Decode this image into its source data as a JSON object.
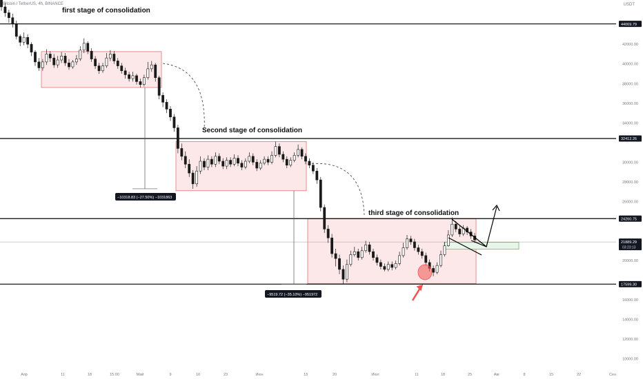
{
  "header": {
    "symbol": "Bitcoin / TetherUS, 4h, BINANCE",
    "currency": "USDT"
  },
  "colors": {
    "candle": "#1a1a1a",
    "zone_fill": "#fce8e8",
    "zone_stroke": "#e57373",
    "level_line": "#000000",
    "current_price_line": "#9e9e9e",
    "green_zone": "#e8f5e9",
    "green_stroke": "#66bb6a",
    "red_marker": "#ef5350",
    "axis_text": "#787b86",
    "label_bg": "#131722"
  },
  "chart_data": {
    "type": "candlestick",
    "title": "",
    "y_axis_ticks": [
      42000,
      40000,
      38000,
      36000,
      34000,
      30000,
      28000,
      26000,
      20000,
      16000,
      14000,
      12000,
      10000
    ],
    "y_axis_tick_labels": [
      "42000.00",
      "40000.00",
      "38000.00",
      "36000.00",
      "34000.00",
      "30000.00",
      "28000.00",
      "26000.00",
      "20000.00",
      "16000.00",
      "14000.00",
      "12000.00",
      "10000.00"
    ],
    "ylim": [
      9000,
      46500
    ],
    "x_axis_labels": [
      "Апр",
      "11",
      "18",
      "15:00",
      "Май",
      "9",
      "16",
      "23",
      "Июн",
      "13",
      "20",
      "Июл",
      "11",
      "18",
      "25",
      "Авг",
      "8",
      "15",
      "22",
      "Сен"
    ],
    "horizontal_levels": [
      {
        "price": 44069.79,
        "label": "44069.79"
      },
      {
        "price": 32412.26,
        "label": "32412.26"
      },
      {
        "price": 24260.75,
        "label": "24260.75"
      },
      {
        "price": 17599.3,
        "label": "17599.30"
      }
    ],
    "current_price": {
      "price": 21889.29,
      "label": "21889.29",
      "countdown": "03:23:13"
    },
    "consolidation_zones": [
      {
        "label": "first stage of consolidation",
        "price_high": 41250,
        "price_low": 37600
      },
      {
        "label": "Second stage of consolidation",
        "price_high": 32100,
        "price_low": 27100
      },
      {
        "label": "third stage of consolidation",
        "price_high": 24250,
        "price_low": 17650
      }
    ],
    "measurements": [
      {
        "text": "−10318.83 (−27.50%) −1031863",
        "from_price": 37600,
        "to_price": 27300
      },
      {
        "text": "−9519.72 (−35.10%) −951972",
        "from_price": 27100,
        "to_price": 17600
      }
    ],
    "green_target_zone": {
      "price_high": 21850,
      "price_low": 21150
    },
    "series": [
      {
        "type": "candlestick",
        "values": [
          [
            46500,
            45800,
            46800,
            45400
          ],
          [
            45800,
            45200,
            46200,
            44800
          ],
          [
            45200,
            44700,
            45500,
            44200
          ],
          [
            44700,
            44100,
            45100,
            43700
          ],
          [
            44100,
            42800,
            44400,
            42500
          ],
          [
            42800,
            42200,
            43000,
            41800
          ],
          [
            42200,
            42700,
            43200,
            41900
          ],
          [
            42700,
            42000,
            43000,
            41600
          ],
          [
            42000,
            41200,
            42200,
            40800
          ],
          [
            41200,
            40200,
            41400,
            39800
          ],
          [
            40200,
            39600,
            40600,
            39300
          ],
          [
            39600,
            40200,
            40500,
            39300
          ],
          [
            40200,
            41000,
            41500,
            39900
          ],
          [
            41000,
            40600,
            41300,
            40200
          ],
          [
            40600,
            39900,
            41000,
            39600
          ],
          [
            39900,
            40400,
            40800,
            39600
          ],
          [
            40400,
            40800,
            41200,
            40100
          ],
          [
            40800,
            40100,
            41100,
            39800
          ],
          [
            40100,
            39700,
            40500,
            39400
          ],
          [
            39700,
            40200,
            40400,
            39500
          ],
          [
            40200,
            40500,
            40900,
            39900
          ],
          [
            40500,
            41400,
            41800,
            40300
          ],
          [
            41400,
            42100,
            42600,
            41100
          ],
          [
            42100,
            41300,
            42300,
            41000
          ],
          [
            41300,
            40500,
            41600,
            40200
          ],
          [
            40500,
            39800,
            40800,
            39500
          ],
          [
            39800,
            39300,
            40100,
            39000
          ],
          [
            39300,
            39800,
            40100,
            39100
          ],
          [
            39800,
            40600,
            41100,
            39600
          ],
          [
            40600,
            41000,
            41400,
            40300
          ],
          [
            41000,
            40300,
            41300,
            40000
          ],
          [
            40300,
            39800,
            40600,
            39500
          ],
          [
            39800,
            39300,
            40100,
            39000
          ],
          [
            39300,
            38900,
            39600,
            38500
          ],
          [
            38900,
            38500,
            39200,
            38200
          ],
          [
            38500,
            38800,
            39200,
            38200
          ],
          [
            38800,
            38200,
            39000,
            37900
          ],
          [
            38200,
            37900,
            38500,
            37600
          ],
          [
            37900,
            38600,
            38900,
            37700
          ],
          [
            38600,
            39500,
            40200,
            38400
          ],
          [
            39500,
            39900,
            40300,
            39200
          ],
          [
            39900,
            38600,
            40100,
            38200
          ],
          [
            38600,
            36800,
            38800,
            36400
          ],
          [
            36800,
            36100,
            37100,
            35600
          ],
          [
            36100,
            35400,
            36400,
            35000
          ],
          [
            35400,
            34600,
            35700,
            34200
          ],
          [
            34600,
            33500,
            34900,
            33100
          ],
          [
            33500,
            31400,
            33800,
            30900
          ],
          [
            31400,
            30600,
            31900,
            30200
          ],
          [
            30600,
            29800,
            31100,
            29400
          ],
          [
            29800,
            28900,
            30300,
            28500
          ],
          [
            28900,
            27800,
            29200,
            27300
          ],
          [
            27800,
            29100,
            29600,
            27500
          ],
          [
            29100,
            30100,
            30600,
            28800
          ],
          [
            30100,
            29500,
            30400,
            29200
          ],
          [
            29500,
            30300,
            30700,
            29200
          ],
          [
            30300,
            29800,
            30600,
            29500
          ],
          [
            29800,
            30600,
            31000,
            29500
          ],
          [
            30600,
            30100,
            30900,
            29800
          ],
          [
            30100,
            29600,
            30400,
            29300
          ],
          [
            29600,
            30200,
            30500,
            29300
          ],
          [
            30200,
            29800,
            30500,
            29500
          ],
          [
            29800,
            30400,
            30800,
            29600
          ],
          [
            30400,
            29900,
            30700,
            29600
          ],
          [
            29900,
            29500,
            30200,
            29200
          ],
          [
            29500,
            30100,
            30400,
            29300
          ],
          [
            30100,
            30600,
            31000,
            29900
          ],
          [
            30600,
            30000,
            30900,
            29700
          ],
          [
            30000,
            29400,
            30300,
            29100
          ],
          [
            29400,
            29900,
            30200,
            29200
          ],
          [
            29900,
            30300,
            30600,
            29700
          ],
          [
            30300,
            30000,
            30600,
            29700
          ],
          [
            30000,
            30700,
            31100,
            29800
          ],
          [
            30700,
            31600,
            32100,
            30500
          ],
          [
            31600,
            30800,
            31900,
            30500
          ],
          [
            30800,
            30300,
            31100,
            30000
          ],
          [
            30300,
            29700,
            30600,
            29400
          ],
          [
            29700,
            30200,
            30500,
            29500
          ],
          [
            30200,
            30700,
            31000,
            30000
          ],
          [
            30700,
            31300,
            31800,
            30500
          ],
          [
            31300,
            30600,
            31500,
            30300
          ],
          [
            30600,
            30100,
            30900,
            29800
          ],
          [
            30100,
            29700,
            30400,
            29400
          ],
          [
            29700,
            29100,
            30000,
            28800
          ],
          [
            29100,
            28200,
            29400,
            27800
          ],
          [
            28200,
            25400,
            28500,
            25000
          ],
          [
            25400,
            23200,
            25700,
            22800
          ],
          [
            23200,
            22300,
            23600,
            21800
          ],
          [
            22300,
            20700,
            22700,
            20300
          ],
          [
            20700,
            20200,
            21200,
            19400
          ],
          [
            20200,
            19100,
            20600,
            18600
          ],
          [
            19100,
            18100,
            19500,
            17600
          ],
          [
            18100,
            19600,
            20100,
            17800
          ],
          [
            19600,
            20600,
            21000,
            19400
          ],
          [
            20600,
            20900,
            21400,
            20400
          ],
          [
            20900,
            20300,
            21200,
            20000
          ],
          [
            20300,
            21000,
            21400,
            20100
          ],
          [
            21000,
            21600,
            22000,
            20800
          ],
          [
            21600,
            20900,
            21900,
            20600
          ],
          [
            20900,
            20300,
            21200,
            20000
          ],
          [
            20300,
            19800,
            20600,
            19500
          ],
          [
            19800,
            19400,
            20100,
            19100
          ],
          [
            19400,
            19100,
            19700,
            18900
          ],
          [
            19100,
            19600,
            19900,
            18900
          ],
          [
            19600,
            19300,
            19900,
            19000
          ],
          [
            19300,
            19700,
            20000,
            19100
          ],
          [
            19700,
            20500,
            20900,
            19500
          ],
          [
            20500,
            21300,
            21800,
            20300
          ],
          [
            21300,
            22200,
            22600,
            21100
          ],
          [
            22200,
            21900,
            22500,
            21600
          ],
          [
            21900,
            21300,
            22200,
            21000
          ],
          [
            21300,
            20900,
            21600,
            20600
          ],
          [
            20900,
            20500,
            21200,
            20200
          ],
          [
            20500,
            19800,
            20800,
            19500
          ],
          [
            19800,
            19200,
            20100,
            18900
          ],
          [
            19200,
            18800,
            19500,
            18400
          ],
          [
            18800,
            19500,
            19800,
            18600
          ],
          [
            19500,
            20600,
            21000,
            19300
          ],
          [
            20600,
            21500,
            21900,
            20400
          ],
          [
            21500,
            22600,
            23100,
            21400
          ],
          [
            22600,
            23700,
            24400,
            22400
          ],
          [
            23700,
            23200,
            24000,
            22900
          ],
          [
            23200,
            22700,
            23500,
            22400
          ],
          [
            22700,
            23300,
            23600,
            22500
          ],
          [
            23300,
            22900,
            23500,
            22600
          ],
          [
            22900,
            22500,
            23200,
            22200
          ],
          [
            22500,
            22100,
            22800,
            21800
          ]
        ]
      }
    ]
  },
  "annotations": {
    "first_label": "first stage of consolidation",
    "second_label": "Second stage of consolidation",
    "third_label": "third stage of consolidation",
    "measure_1": "−10318.83 (−27.50%) −1031863",
    "measure_2": "−9519.72 (−35.10%) −951972"
  }
}
